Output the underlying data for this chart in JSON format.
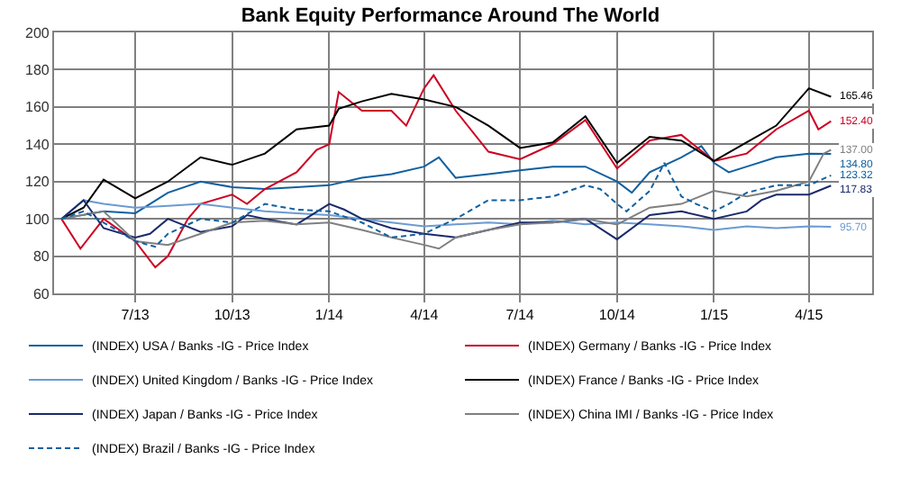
{
  "chart_data": {
    "type": "line",
    "title": "Bank Equity Performance Around The World",
    "xlim": [
      "2013-04-15",
      "2015-05-31"
    ],
    "xticks": [
      {
        "value": "2013-07-01",
        "label": "7/13"
      },
      {
        "value": "2013-10-01",
        "label": "10/13"
      },
      {
        "value": "2014-01-01",
        "label": "1/14"
      },
      {
        "value": "2014-04-01",
        "label": "4/14"
      },
      {
        "value": "2014-07-01",
        "label": "7/14"
      },
      {
        "value": "2014-10-01",
        "label": "10/14"
      },
      {
        "value": "2015-01-01",
        "label": "1/15"
      },
      {
        "value": "2015-04-01",
        "label": "4/15"
      }
    ],
    "ylim": [
      60,
      200
    ],
    "yticks": [
      60,
      80,
      100,
      120,
      140,
      160,
      180,
      200
    ],
    "grid": true,
    "legend": "bottom",
    "marker": "none",
    "series": [
      {
        "name": "(INDEX) USA / Banks -IG - Price Index",
        "color": "#1060a0",
        "line_style": "solid",
        "x": [
          "2013-04-22",
          "2013-06-01",
          "2013-07-01",
          "2013-08-01",
          "2013-09-01",
          "2013-10-01",
          "2013-11-01",
          "2013-12-01",
          "2014-01-01",
          "2014-02-01",
          "2014-03-01",
          "2014-04-01",
          "2014-04-15",
          "2014-05-01",
          "2014-06-01",
          "2014-07-01",
          "2014-08-01",
          "2014-09-01",
          "2014-10-01",
          "2014-10-15",
          "2014-11-01",
          "2014-12-01",
          "2014-12-20",
          "2015-01-01",
          "2015-01-15",
          "2015-02-01",
          "2015-03-01",
          "2015-04-01",
          "2015-04-22"
        ],
        "values": [
          100,
          104,
          103,
          114,
          120,
          117,
          116,
          117,
          118,
          122,
          124,
          128,
          133,
          122,
          124,
          126,
          128,
          128,
          120,
          114,
          125,
          133,
          139,
          130,
          125,
          128,
          133,
          135,
          134.8
        ],
        "value_labels": [
          null,
          null,
          null,
          null,
          null,
          null,
          null,
          null,
          null,
          null,
          null,
          null,
          null,
          null,
          null,
          null,
          null,
          null,
          null,
          null,
          null,
          null,
          null,
          null,
          null,
          null,
          null,
          null,
          "134.80"
        ]
      },
      {
        "name": "(INDEX) Germany / Banks -IG - Price Index",
        "color": "#cc0022",
        "line_style": "solid",
        "x": [
          "2013-04-22",
          "2013-05-10",
          "2013-06-01",
          "2013-07-01",
          "2013-07-20",
          "2013-08-01",
          "2013-08-20",
          "2013-09-01",
          "2013-10-01",
          "2013-10-15",
          "2013-11-01",
          "2013-12-01",
          "2013-12-20",
          "2014-01-01",
          "2014-01-10",
          "2014-02-01",
          "2014-03-01",
          "2014-03-15",
          "2014-04-01",
          "2014-04-10",
          "2014-05-01",
          "2014-06-01",
          "2014-07-01",
          "2014-08-01",
          "2014-09-01",
          "2014-10-01",
          "2014-11-01",
          "2014-12-01",
          "2015-01-01",
          "2015-02-01",
          "2015-03-01",
          "2015-04-01",
          "2015-04-10",
          "2015-04-22"
        ],
        "values": [
          100,
          84,
          100,
          88,
          74,
          80,
          100,
          108,
          113,
          108,
          116,
          125,
          137,
          140,
          168,
          158,
          158,
          150,
          170,
          177,
          158,
          136,
          132,
          140,
          153,
          127,
          142,
          145,
          131,
          135,
          148,
          158,
          148,
          152.4
        ],
        "value_labels": [
          null,
          null,
          null,
          null,
          null,
          null,
          null,
          null,
          null,
          null,
          null,
          null,
          null,
          null,
          null,
          null,
          null,
          null,
          null,
          null,
          null,
          null,
          null,
          null,
          null,
          null,
          null,
          null,
          null,
          null,
          null,
          null,
          null,
          "152.40"
        ]
      },
      {
        "name": "(INDEX) United Kingdom / Banks -IG - Price Index",
        "color": "#6b9bd2",
        "line_style": "solid",
        "x": [
          "2013-04-22",
          "2013-05-13",
          "2013-06-01",
          "2013-07-01",
          "2013-08-01",
          "2013-09-01",
          "2013-10-01",
          "2013-11-01",
          "2013-12-01",
          "2014-01-01",
          "2014-02-01",
          "2014-03-01",
          "2014-04-01",
          "2014-05-01",
          "2014-06-01",
          "2014-07-01",
          "2014-08-01",
          "2014-09-01",
          "2014-10-01",
          "2014-11-01",
          "2014-12-01",
          "2015-01-01",
          "2015-02-01",
          "2015-03-01",
          "2015-04-01",
          "2015-04-22"
        ],
        "values": [
          100,
          110,
          108,
          106,
          107,
          108,
          106,
          104,
          103,
          102,
          100,
          98,
          96,
          97,
          98,
          97,
          99,
          97,
          98,
          97,
          96,
          94,
          96,
          95,
          96,
          95.7
        ],
        "value_labels": [
          null,
          null,
          null,
          null,
          null,
          null,
          null,
          null,
          null,
          null,
          null,
          null,
          null,
          null,
          null,
          null,
          null,
          null,
          null,
          null,
          null,
          null,
          null,
          null,
          null,
          "95.70"
        ]
      },
      {
        "name": "(INDEX) France / Banks -IG - Price Index",
        "color": "#000000",
        "line_style": "solid",
        "x": [
          "2013-04-22",
          "2013-05-13",
          "2013-06-01",
          "2013-07-01",
          "2013-08-01",
          "2013-09-01",
          "2013-10-01",
          "2013-11-01",
          "2013-12-01",
          "2014-01-01",
          "2014-01-10",
          "2014-02-01",
          "2014-03-01",
          "2014-04-01",
          "2014-05-01",
          "2014-06-01",
          "2014-07-01",
          "2014-08-01",
          "2014-09-01",
          "2014-10-01",
          "2014-11-01",
          "2014-12-01",
          "2015-01-01",
          "2015-02-01",
          "2015-03-01",
          "2015-04-01",
          "2015-04-22"
        ],
        "values": [
          100,
          106,
          121,
          111,
          120,
          133,
          129,
          135,
          148,
          150,
          159,
          163,
          167,
          164,
          160,
          150,
          138,
          141,
          155,
          130,
          144,
          142,
          131,
          141,
          150,
          170,
          165.46
        ],
        "value_labels": [
          null,
          null,
          null,
          null,
          null,
          null,
          null,
          null,
          null,
          null,
          null,
          null,
          null,
          null,
          null,
          null,
          null,
          null,
          null,
          null,
          null,
          null,
          null,
          null,
          null,
          null,
          "165.46"
        ]
      },
      {
        "name": "(INDEX) Japan / Banks -IG - Price Index",
        "color": "#1a2a6c",
        "line_style": "solid",
        "x": [
          "2013-04-22",
          "2013-05-13",
          "2013-06-01",
          "2013-07-01",
          "2013-07-15",
          "2013-08-01",
          "2013-09-01",
          "2013-10-01",
          "2013-10-15",
          "2013-11-01",
          "2013-12-01",
          "2014-01-01",
          "2014-01-15",
          "2014-02-01",
          "2014-03-01",
          "2014-04-01",
          "2014-05-01",
          "2014-06-01",
          "2014-07-01",
          "2014-08-01",
          "2014-09-01",
          "2014-10-01",
          "2014-11-01",
          "2014-12-01",
          "2015-01-01",
          "2015-02-01",
          "2015-02-15",
          "2015-03-01",
          "2015-04-01",
          "2015-04-22"
        ],
        "values": [
          100,
          110,
          95,
          90,
          92,
          100,
          93,
          96,
          102,
          100,
          97,
          108,
          105,
          100,
          95,
          92,
          90,
          94,
          98,
          98,
          100,
          89,
          102,
          104,
          100,
          104,
          110,
          113,
          113,
          117.83
        ],
        "value_labels": [
          null,
          null,
          null,
          null,
          null,
          null,
          null,
          null,
          null,
          null,
          null,
          null,
          null,
          null,
          null,
          null,
          null,
          null,
          null,
          null,
          null,
          null,
          null,
          null,
          null,
          null,
          null,
          null,
          null,
          "117.83"
        ]
      },
      {
        "name": "(INDEX) China IMI / Banks -IG - Price Index",
        "color": "#808080",
        "line_style": "solid",
        "x": [
          "2013-04-22",
          "2013-06-01",
          "2013-07-01",
          "2013-08-01",
          "2013-09-01",
          "2013-10-01",
          "2013-11-01",
          "2013-12-01",
          "2014-01-01",
          "2014-02-01",
          "2014-03-01",
          "2014-04-01",
          "2014-04-15",
          "2014-05-01",
          "2014-06-01",
          "2014-07-01",
          "2014-08-01",
          "2014-09-01",
          "2014-10-01",
          "2014-11-01",
          "2014-12-01",
          "2015-01-01",
          "2015-02-01",
          "2015-03-01",
          "2015-04-01",
          "2015-04-15",
          "2015-04-22"
        ],
        "values": [
          100,
          104,
          88,
          86,
          92,
          98,
          99,
          97,
          98,
          94,
          90,
          86,
          84,
          90,
          94,
          97,
          98,
          100,
          97,
          106,
          108,
          115,
          112,
          115,
          120,
          135,
          137
        ],
        "value_labels": [
          null,
          null,
          null,
          null,
          null,
          null,
          null,
          null,
          null,
          null,
          null,
          null,
          null,
          null,
          null,
          null,
          null,
          null,
          null,
          null,
          null,
          null,
          null,
          null,
          null,
          null,
          "137.00"
        ]
      },
      {
        "name": "(INDEX) Brazil / Banks -IG - Price Index",
        "color": "#1060a0",
        "line_style": "dashed",
        "x": [
          "2013-04-22",
          "2013-05-13",
          "2013-06-01",
          "2013-07-01",
          "2013-07-20",
          "2013-08-01",
          "2013-09-01",
          "2013-10-01",
          "2013-11-01",
          "2013-12-01",
          "2014-01-01",
          "2014-02-01",
          "2014-03-01",
          "2014-04-01",
          "2014-05-01",
          "2014-06-01",
          "2014-07-01",
          "2014-08-01",
          "2014-09-01",
          "2014-09-15",
          "2014-10-01",
          "2014-10-10",
          "2014-11-01",
          "2014-11-15",
          "2014-12-01",
          "2014-12-15",
          "2015-01-01",
          "2015-01-15",
          "2015-02-01",
          "2015-03-01",
          "2015-04-01",
          "2015-04-22"
        ],
        "values": [
          100,
          104,
          98,
          88,
          85,
          92,
          100,
          98,
          108,
          105,
          104,
          98,
          90,
          92,
          100,
          110,
          110,
          112,
          118,
          116,
          108,
          104,
          115,
          130,
          112,
          108,
          104,
          108,
          114,
          118,
          118,
          123.32
        ],
        "value_labels": [
          null,
          null,
          null,
          null,
          null,
          null,
          null,
          null,
          null,
          null,
          null,
          null,
          null,
          null,
          null,
          null,
          null,
          null,
          null,
          null,
          null,
          null,
          null,
          null,
          null,
          null,
          null,
          null,
          null,
          null,
          null,
          "123.32"
        ]
      }
    ]
  }
}
